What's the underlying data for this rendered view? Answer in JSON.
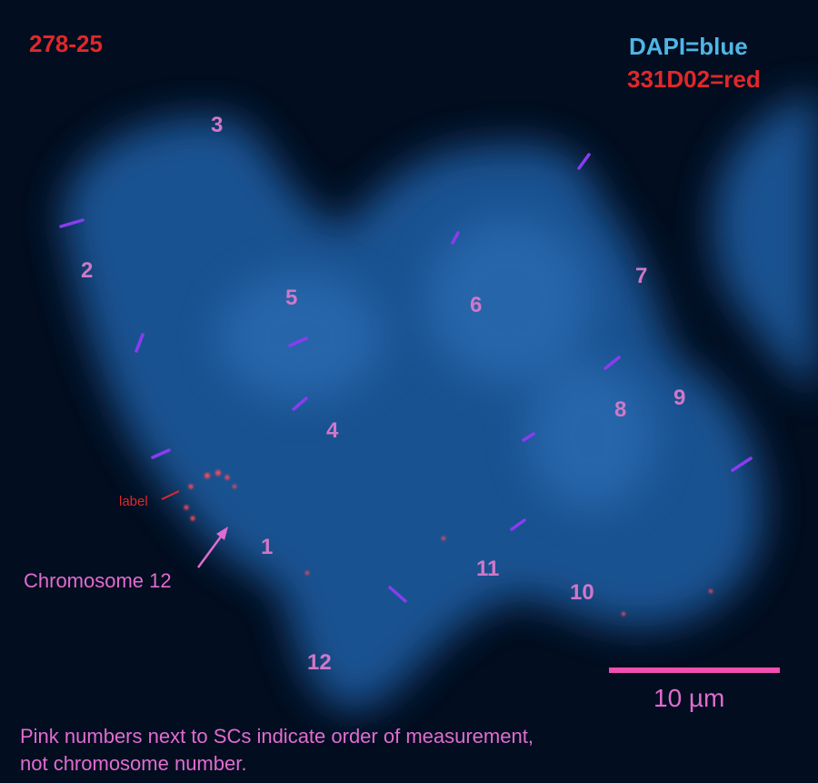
{
  "sample_id": "278-25",
  "legend": {
    "dapi": "DAPI=blue",
    "probe": "331D02=red"
  },
  "colors": {
    "dapi": "#2f6fb8",
    "probe": "#e0282a",
    "annotation": "#e06cd0",
    "sc_marks": "#8a3cf0",
    "background": "#020d1f"
  },
  "sc_numbers": [
    "1",
    "2",
    "3",
    "4",
    "5",
    "6",
    "7",
    "8",
    "9",
    "10",
    "11",
    "12"
  ],
  "annotations": {
    "label": "label",
    "chromosome": "Chromosome 12"
  },
  "scale_bar": {
    "label": "10 µm"
  },
  "note": [
    "Pink numbers next to SCs indicate order of measurement,",
    "not chromosome number."
  ]
}
